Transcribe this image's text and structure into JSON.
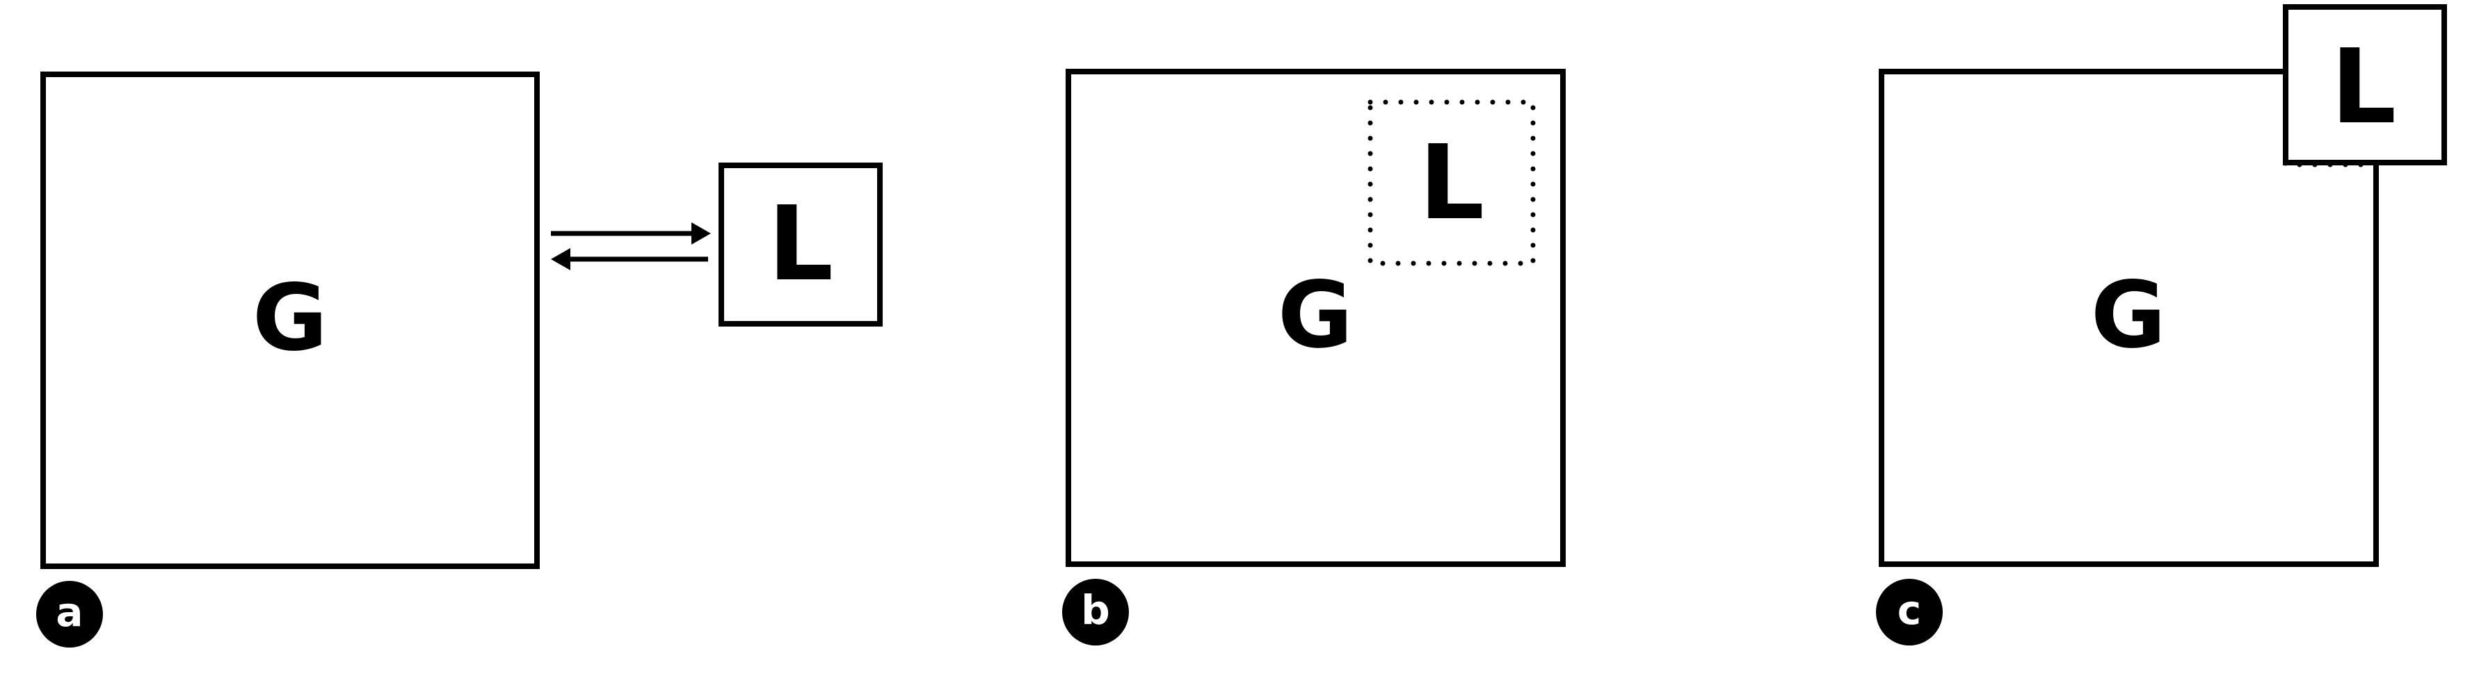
{
  "panels": [
    {
      "id": "a",
      "label": "a",
      "outer_label": "G",
      "inner_label": "L"
    },
    {
      "id": "b",
      "label": "b",
      "outer_label": "G",
      "inner_label": "L"
    },
    {
      "id": "c",
      "label": "c",
      "outer_label": "G",
      "inner_label": "L"
    }
  ],
  "colors": {
    "stroke": "#000000",
    "background": "#ffffff",
    "badge_fill": "#000000",
    "badge_text": "#ffffff"
  }
}
